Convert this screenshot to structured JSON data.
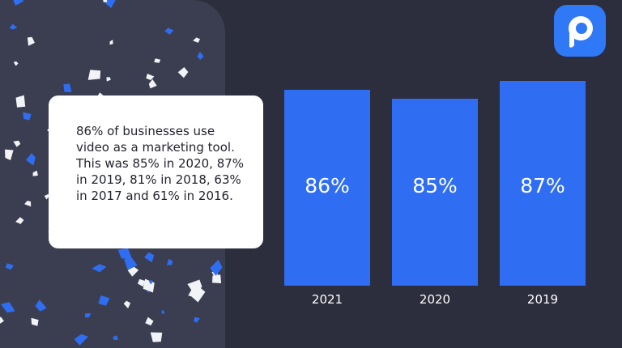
{
  "chart_data": {
    "type": "bar",
    "annotation": "86% of businesses use video as a marketing tool. This was 85% in 2020, 87% in 2019, 81% in 2018, 63% in 2017 and 61% in 2016.",
    "categories": [
      "2021",
      "2020",
      "2019"
    ],
    "values": [
      86,
      85,
      87
    ],
    "value_labels": [
      "86%",
      "85%",
      "87%"
    ],
    "color": "#2f6ef2",
    "ylim": [
      64,
      88
    ]
  }
}
